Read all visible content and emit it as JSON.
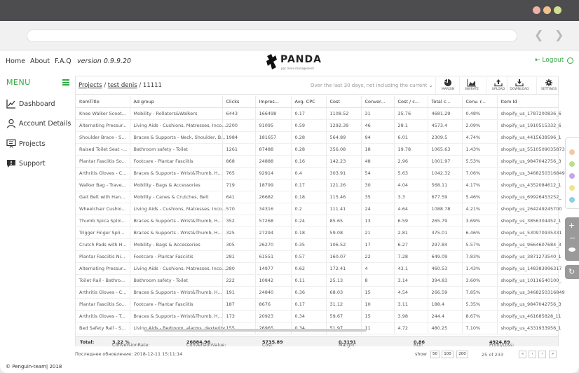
{
  "nav": {
    "home": "Home",
    "about": "About",
    "faq": "F.A.Q",
    "version": "version 0.9.9.20",
    "logo_word": "PANDA",
    "logo_tag": "ppc more management",
    "logout": "Logout"
  },
  "sidebar": {
    "menu": "MENU",
    "items": [
      {
        "label": "Dashboard",
        "icon": "chart-icon"
      },
      {
        "label": "Account Details",
        "icon": "user-icon"
      },
      {
        "label": "Projects",
        "icon": "presentation-icon"
      },
      {
        "label": "Support",
        "icon": "chat-icon"
      }
    ]
  },
  "toolbar": {
    "crumb_projects": "Projects",
    "crumb_sep1": "/",
    "crumb_project": "test denis",
    "crumb_sep2": "/",
    "crumb_id": "11111",
    "date_range": "Over the last 30 days, not including the current",
    "buttons": [
      "MARGIN",
      "SW/RATE",
      "UPLOAD",
      "DOWNLOAD",
      "SETTINGS"
    ]
  },
  "table": {
    "headers": [
      "ItemTitle",
      "Ad group",
      "Clicks",
      "Impres...",
      "Avg. CPC",
      "Cost",
      "Conver...",
      "Cost / c...",
      "Total c...",
      "Conv. r...",
      "Item Id"
    ],
    "rows": [
      [
        "Knee Walker Scoot...",
        "Mobility - Rollators&Walkers",
        "6443",
        "166498",
        "0.17",
        "1108.52",
        "31",
        "35.76",
        "4681.29",
        "0.48%",
        "shopify_us_1787200836_6"
      ],
      [
        "Alternating Pressur...",
        "Living Aids - Cushions, Matresses, Inco...",
        "2200",
        "91095",
        "0.59",
        "1292.39",
        "46",
        "28.1",
        "4573.4",
        "2.09%",
        "shopify_us_1910515332_6"
      ],
      [
        "Shoulder Brace - S...",
        "Braces & Supports - Neck, Shoulder, B...",
        "1984",
        "181657",
        "0.28",
        "564.89",
        "94",
        "6.01",
        "2309.5",
        "4.74%",
        "shopify_us_4415638596_1"
      ],
      [
        "Raised Toilet Seat -...",
        "Bathroom safety - Toilet",
        "1261",
        "87488",
        "0.28",
        "356.08",
        "18",
        "19.78",
        "1065.63",
        "1.43%",
        "shopify_us_5510509035873"
      ],
      [
        "Plantar Fasciitis So...",
        "Footcare - Plantar Fasciitis",
        "868",
        "24888",
        "0.16",
        "142.23",
        "48",
        "2.96",
        "1001.97",
        "5.53%",
        "shopify_us_9847042756_3"
      ],
      [
        "Arthritis Gloves - C...",
        "Braces & Supports - Wrist&Thumb, H...",
        "765",
        "92914",
        "0.4",
        "303.91",
        "54",
        "5.63",
        "1042.32",
        "7.06%",
        "shopify_us_3468250316849"
      ],
      [
        "Walker Bag - Trave...",
        "Mobility - Bags & Accessories",
        "719",
        "18799",
        "0.17",
        "121.26",
        "30",
        "4.04",
        "568.11",
        "4.17%",
        "shopify_us_4352084612_1"
      ],
      [
        "Gait Belt with Han...",
        "Mobility - Canes & Crutches, Belt",
        "641",
        "26682",
        "0.18",
        "115.46",
        "35",
        "3.3",
        "677.59",
        "5.46%",
        "shopify_us_69926453252_"
      ],
      [
        "Wheelchair Cushio...",
        "Living Aids - Cushions, Matresses, Inco...",
        "570",
        "34316",
        "0.2",
        "111.41",
        "24",
        "4.64",
        "1088.78",
        "4.21%",
        "shopify_us_264249245700"
      ],
      [
        "Thumb Spica Splin...",
        "Braces & Supports - Wrist&Thumb, H...",
        "352",
        "57268",
        "0.24",
        "85.65",
        "13",
        "6.59",
        "265.79",
        "3.69%",
        "shopify_us_3856304452_1"
      ],
      [
        "Trigger Finger Spli...",
        "Braces & Supports - Wrist&Thumb, H...",
        "325",
        "27294",
        "0.18",
        "59.08",
        "21",
        "2.81",
        "375.01",
        "6.46%",
        "shopify_us_530970935331"
      ],
      [
        "Crutch Pads with H...",
        "Mobility - Bags & Accessories",
        "305",
        "26270",
        "0.35",
        "106.52",
        "17",
        "6.27",
        "297.84",
        "5.57%",
        "shopify_us_9664607684_3"
      ],
      [
        "Plantar Fasciitis Ni...",
        "Footcare - Plantar Fasciitis",
        "281",
        "61551",
        "0.57",
        "160.07",
        "22",
        "7.28",
        "649.09",
        "7.83%",
        "shopify_us_3871273540_1"
      ],
      [
        "Alternating Pressur...",
        "Living Aids - Cushions, Matresses, Inco...",
        "280",
        "14977",
        "0.62",
        "172.41",
        "4",
        "43.1",
        "460.53",
        "1.43%",
        "shopify_us_148383996317"
      ],
      [
        "Toilet Rail - Bathro...",
        "Bathroom safety - Toilet",
        "222",
        "10842",
        "0.11",
        "25.13",
        "8",
        "3.14",
        "394.83",
        "3.60%",
        "shopify_us_10116540100_"
      ],
      [
        "Arthritis Gloves - C...",
        "Braces & Supports - Wrist&Thumb, H...",
        "191",
        "24840",
        "0.36",
        "68.03",
        "15",
        "4.54",
        "266.59",
        "7.85%",
        "shopify_us_3468250316849"
      ],
      [
        "Plantar Fasciitis So...",
        "Footcare - Plantar Fasciitis",
        "187",
        "8676",
        "0.17",
        "31.12",
        "10",
        "3.11",
        "188.4",
        "5.35%",
        "shopify_us_9847042756_3"
      ],
      [
        "Arthritis Gloves - T...",
        "Braces & Supports - Wrist&Thumb, H...",
        "173",
        "20923",
        "0.34",
        "59.67",
        "15",
        "3.98",
        "244.4",
        "8.67%",
        "shopify_us_461685828_11"
      ],
      [
        "Bed Safety Rail - S...",
        "Living Aids - Bedroom, alarms, dexterity",
        "155",
        "26965",
        "0.34",
        "51.97",
        "11",
        "4.72",
        "480.25",
        "7.10%",
        "shopify_us_4331933956_1"
      ]
    ]
  },
  "totals": {
    "label": "Total:",
    "conv_rate_label": "ConversionRate:",
    "conv_rate": "3.22 %",
    "conv_value_label": "ConversionValue:",
    "conv_value": "26884.96",
    "cost_label": "Cost:",
    "cost": "5735.89",
    "margin_label": "Margin:",
    "margin": "0.3191",
    "roi_label": "ROI:",
    "roi": "0.86",
    "profit_label": "Profit/Loss:",
    "profit": "4924.89"
  },
  "footer": {
    "last_update": "Последнее обновление: 2018-12-11 15:11:14",
    "show_label": "show",
    "show_options": [
      "50",
      "100",
      "200"
    ],
    "page_count": "25 of 233",
    "pager": [
      "«",
      "‹",
      "›",
      "»"
    ],
    "copyright": "© Penguin-team| 2018"
  },
  "colors": {
    "accent_green": "#35a845",
    "titlebar": "#4d4d4f",
    "dots": [
      "#f2c9a6",
      "#b9e08a",
      "#c5a6e8",
      "#f3e38a",
      "#8ad0e6"
    ]
  }
}
